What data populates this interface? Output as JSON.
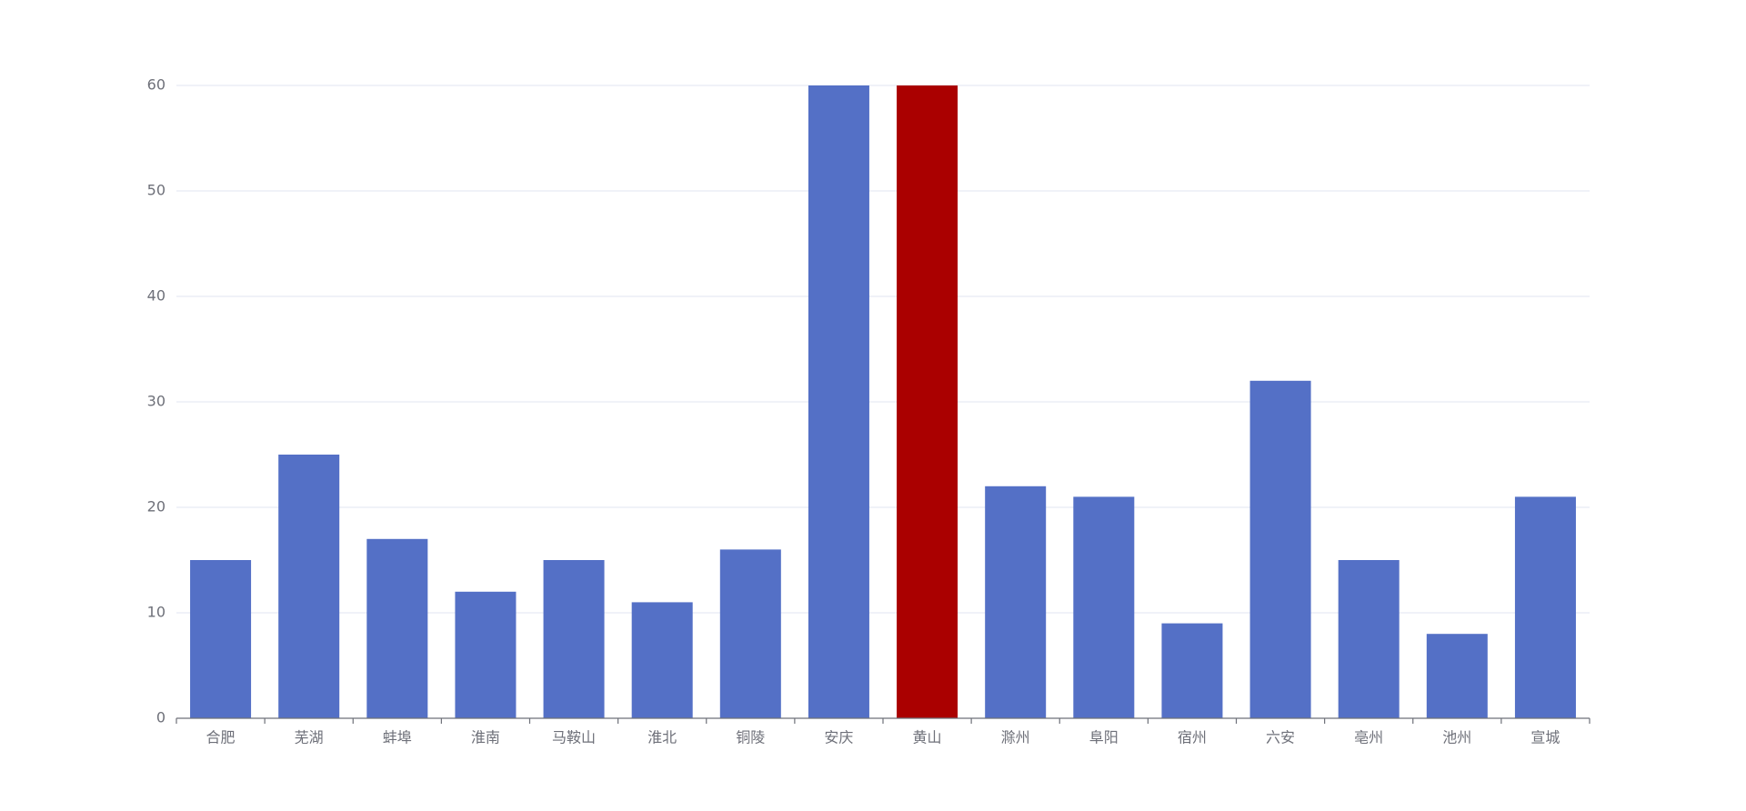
{
  "chart_data": {
    "type": "bar",
    "categories": [
      "合肥",
      "芜湖",
      "蚌埠",
      "淮南",
      "马鞍山",
      "淮北",
      "铜陵",
      "安庆",
      "黄山",
      "滁州",
      "阜阳",
      "宿州",
      "六安",
      "亳州",
      "池州",
      "宣城"
    ],
    "values": [
      15,
      25,
      17,
      12,
      15,
      11,
      16,
      60,
      60,
      22,
      21,
      9,
      32,
      15,
      8,
      21
    ],
    "colors": [
      "#5470c6",
      "#5470c6",
      "#5470c6",
      "#5470c6",
      "#5470c6",
      "#5470c6",
      "#5470c6",
      "#5470c6",
      "#aa0000",
      "#5470c6",
      "#5470c6",
      "#5470c6",
      "#5470c6",
      "#5470c6",
      "#5470c6",
      "#5470c6"
    ],
    "ylim": [
      0,
      60
    ],
    "yticks": [
      0,
      10,
      20,
      30,
      40,
      50,
      60
    ],
    "grid": true
  }
}
